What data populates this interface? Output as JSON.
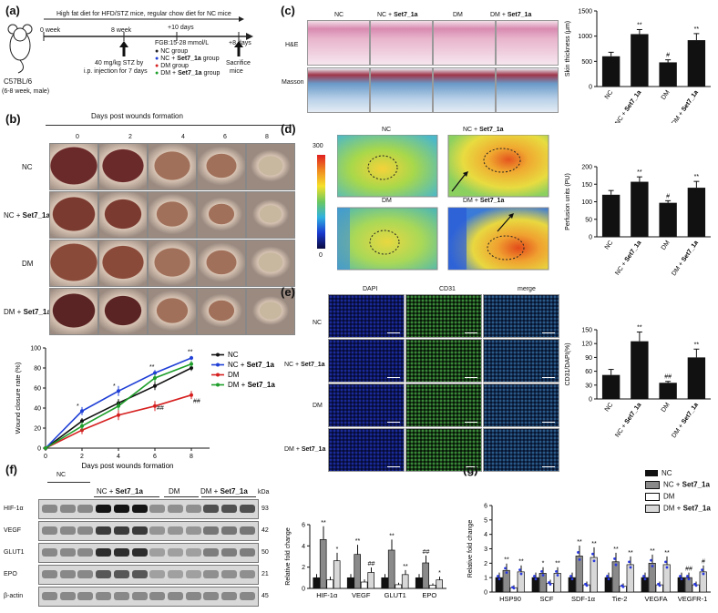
{
  "panel_a": {
    "label": "(a)",
    "header": "High fat diet for HFD/STZ mice, regular chow diet for NC mice",
    "mouse": "C57BL/6",
    "mouse_sub": "(6-8 week, male)",
    "week0": "0 week",
    "week8": "8 week",
    "plus10": "+10 days",
    "fbg": "FGB:15-28 mmol/L",
    "plus8": "+8 days",
    "stz1": "40 mg/kg STZ by",
    "stz2": "i.p. injection  for 7 days",
    "sacrifice1": "Sacrifice",
    "sacrifice2": "mice",
    "groups": [
      {
        "prefix": "NC",
        "bold": "",
        "suffix": " group",
        "color": "#222222"
      },
      {
        "prefix": "NC + ",
        "bold": "Set7_1a",
        "suffix": " group",
        "color": "#1f3fd6"
      },
      {
        "prefix": "DM",
        "bold": "",
        "suffix": " group",
        "color": "#d62020"
      },
      {
        "prefix": "DM + ",
        "bold": "Set7_1a",
        "suffix": " group",
        "color": "#1e9e2a"
      }
    ]
  },
  "panel_b": {
    "label": "(b)",
    "title": "Days post wounds formation",
    "days": [
      "0",
      "2",
      "4",
      "6",
      "8"
    ],
    "rows": [
      {
        "prefix": "NC",
        "bold": ""
      },
      {
        "prefix": "NC + ",
        "bold": "Set7_1a"
      },
      {
        "prefix": "DM",
        "bold": ""
      },
      {
        "prefix": "DM + ",
        "bold": "Set7_1a"
      }
    ]
  },
  "chart_data": [
    {
      "id": "wound_closure",
      "type": "line",
      "title": "",
      "xlabel": "Days post wounds formation",
      "ylabel": "Wound closure rate (%)",
      "x": [
        0,
        2,
        4,
        6,
        8
      ],
      "xlim": [
        0,
        9
      ],
      "ylim": [
        0,
        100
      ],
      "xticks": [
        "0",
        "2",
        "4",
        "6",
        "8"
      ],
      "yticks": [
        "0",
        "20",
        "40",
        "60",
        "80",
        "100"
      ],
      "series": [
        {
          "name": "NC",
          "color": "#111111",
          "values": [
            0,
            27,
            45,
            62,
            80
          ],
          "err": [
            0,
            3,
            4,
            4,
            3
          ]
        },
        {
          "name": "NC + Set7_1a",
          "color": "#1f3fd6",
          "values": [
            0,
            37,
            57,
            75,
            90
          ],
          "err": [
            0,
            4,
            5,
            3,
            2
          ]
        },
        {
          "name": "DM",
          "color": "#d62020",
          "values": [
            0,
            18,
            33,
            42,
            53
          ],
          "err": [
            0,
            4,
            5,
            5,
            4
          ]
        },
        {
          "name": "DM + Set7_1a",
          "color": "#1e9e2a",
          "values": [
            0,
            22,
            42,
            70,
            84
          ],
          "err": [
            0,
            4,
            4,
            4,
            3
          ]
        }
      ],
      "annotations": [
        "*",
        "*",
        "**",
        "**",
        "##",
        "##"
      ],
      "legend_prefixes": [
        "NC",
        "NC + ",
        "DM",
        "DM + "
      ],
      "legend_bold": [
        "",
        "Set7_1a",
        "",
        "Set7_1a"
      ]
    },
    {
      "id": "skin_thickness",
      "type": "bar",
      "ylabel": "Skin thickness (μm)",
      "categories": [
        "NC",
        "NC + Set7_1a",
        "DM",
        "DM + Set7_1a"
      ],
      "values": [
        600,
        1040,
        480,
        920
      ],
      "err": [
        80,
        90,
        50,
        130
      ],
      "ylim": [
        0,
        1500
      ],
      "yticks": [
        "0",
        "500",
        "1000",
        "1500"
      ],
      "annotations": [
        "",
        "**",
        "#",
        "**"
      ]
    },
    {
      "id": "perfusion",
      "type": "bar",
      "ylabel": "Perfusion units (PU)",
      "categories": [
        "NC",
        "NC + Set7_1a",
        "DM",
        "DM + Set7_1a"
      ],
      "values": [
        120,
        157,
        97,
        140
      ],
      "err": [
        12,
        14,
        6,
        18
      ],
      "ylim": [
        0,
        200
      ],
      "yticks": [
        "0",
        "50",
        "100",
        "150",
        "200"
      ],
      "annotations": [
        "",
        "**",
        "#",
        "**"
      ]
    },
    {
      "id": "cd31",
      "type": "bar",
      "ylabel": "CD31/DAPI(%)",
      "categories": [
        "NC",
        "NC + Set7_1a",
        "DM",
        "DM + Set7_1a"
      ],
      "values": [
        52,
        125,
        35,
        90
      ],
      "err": [
        12,
        20,
        3,
        18
      ],
      "ylim": [
        0,
        150
      ],
      "yticks": [
        "0",
        "30",
        "60",
        "90",
        "120",
        "150"
      ],
      "annotations": [
        "",
        "**",
        "##",
        "**"
      ]
    },
    {
      "id": "protein_fold",
      "type": "bar",
      "ylabel": "Relative fold change",
      "categories": [
        "HIF-1α",
        "VEGF",
        "GLUT1",
        "EPO"
      ],
      "series": [
        {
          "name": "NC",
          "values": [
            1.0,
            1.0,
            1.0,
            1.0
          ]
        },
        {
          "name": "NC + Set7_1a",
          "values": [
            4.6,
            3.2,
            3.6,
            2.4
          ]
        },
        {
          "name": "DM",
          "values": [
            0.8,
            0.6,
            0.35,
            0.3
          ]
        },
        {
          "name": "DM + Set7_1a",
          "values": [
            2.6,
            1.5,
            1.3,
            0.8
          ]
        }
      ],
      "ylim": [
        0,
        6
      ],
      "yticks": [
        "0",
        "2",
        "4",
        "6"
      ],
      "annotations": [
        "**",
        "*",
        "**",
        "##",
        "**",
        "**",
        "##",
        "*"
      ]
    },
    {
      "id": "mrna_fold",
      "type": "bar",
      "ylabel": "Relative fold change",
      "categories": [
        "HSP90",
        "SCF",
        "SDF-1α",
        "Tie-2",
        "VEGFA",
        "VEGFR-1"
      ],
      "series": [
        {
          "name": "NC",
          "values": [
            1.0,
            1.0,
            1.0,
            1.0,
            1.0,
            1.0
          ]
        },
        {
          "name": "NC + Set7_1a",
          "values": [
            1.5,
            1.3,
            2.5,
            2.1,
            2.0,
            1.0
          ]
        },
        {
          "name": "DM",
          "values": [
            0.3,
            0.6,
            0.5,
            0.4,
            0.5,
            0.5
          ]
        },
        {
          "name": "DM + Set7_1a",
          "values": [
            1.4,
            1.3,
            2.4,
            1.9,
            1.9,
            1.4
          ]
        }
      ],
      "ylim": [
        0,
        6
      ],
      "yticks": [
        "0",
        "1",
        "2",
        "3",
        "4",
        "5",
        "6"
      ],
      "annotations": [
        "**",
        "**",
        "*",
        "**",
        "**",
        "**",
        "**",
        "**",
        "**",
        "**",
        "##",
        "#"
      ]
    }
  ],
  "panel_c": {
    "label": "(c)",
    "cols": [
      "NC",
      "NC + ",
      "DM",
      "DM + "
    ],
    "cols_bold": [
      "",
      "Set7_1a",
      "",
      "Set7_1a"
    ],
    "rows": [
      "H&E",
      "Masson"
    ]
  },
  "panel_d": {
    "label": "(d)",
    "scale_max": "300",
    "scale_min": "0",
    "titles": [
      "NC",
      "NC + ",
      "DM",
      "DM + "
    ],
    "titles_bold": [
      "",
      "Set7_1a",
      "",
      "Set7_1a"
    ]
  },
  "panel_e": {
    "label": "(e)",
    "cols": [
      "DAPI",
      "CD31",
      "merge"
    ],
    "rows": [
      "NC",
      "NC + ",
      "DM",
      "DM + "
    ],
    "rows_bold": [
      "",
      "Set7_1a",
      "",
      "Set7_1a"
    ]
  },
  "panel_f": {
    "label": "(f)",
    "groups": [
      "NC",
      "NC + ",
      "DM",
      "DM + "
    ],
    "groups_bold": [
      "",
      "Set7_1a",
      "",
      "Set7_1a"
    ],
    "kda": "kDa",
    "proteins": [
      {
        "name": "HIF-1α",
        "kda": "93"
      },
      {
        "name": "VEGF",
        "kda": "42"
      },
      {
        "name": "GLUT1",
        "kda": "50"
      },
      {
        "name": "EPO",
        "kda": "21"
      },
      {
        "name": "β-actin",
        "kda": "45"
      }
    ]
  },
  "panel_g": {
    "label": "(g)",
    "legend": [
      {
        "prefix": "NC",
        "bold": ""
      },
      {
        "prefix": "NC + ",
        "bold": "Set7_1a"
      },
      {
        "prefix": "DM",
        "bold": ""
      },
      {
        "prefix": "DM + ",
        "bold": "Set7_1a"
      }
    ]
  }
}
